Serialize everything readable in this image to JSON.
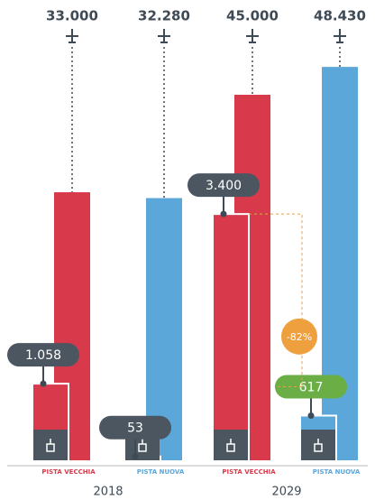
{
  "chart_data": {
    "type": "bar",
    "categories": [
      "PISTA VECCHIA",
      "PISTA NUOVA",
      "PISTA VECCHIA",
      "PISTA NUOVA"
    ],
    "groups": [
      "2018",
      "2029"
    ],
    "colors": [
      "#d83a4b",
      "#5ba7da",
      "#d83a4b",
      "#5ba7da"
    ],
    "outer": {
      "values": [
        33000,
        32280,
        45000,
        48430
      ],
      "value_labels": [
        "33.000",
        "32.280",
        "45.000",
        "48.430"
      ],
      "ylim": [
        0,
        50000
      ]
    },
    "inner": {
      "values": [
        1058,
        53,
        3400,
        617
      ],
      "value_labels": [
        "1.058",
        "53",
        "3.400",
        "617"
      ],
      "ylim": [
        0,
        4000
      ],
      "label_colors": [
        "#4b5661",
        "#4b5661",
        "#4b5661",
        "#6aae45"
      ]
    },
    "annotation": {
      "value": -82,
      "label": "-82%",
      "color": "#eea03f"
    }
  }
}
